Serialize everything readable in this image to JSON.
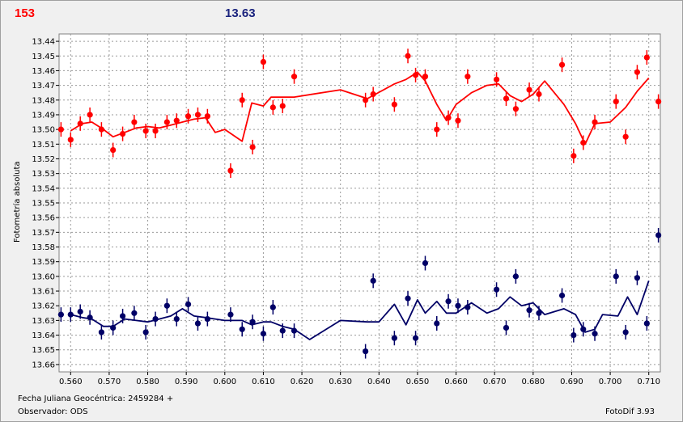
{
  "header": {
    "left_value": "153",
    "right_value": "13.63",
    "left_color": "#ff0000",
    "right_color": "#1a237e"
  },
  "footer": {
    "xlabel": "Fecha Juliana Geocéntrica: 2459284 +",
    "observer": "Observador: ODS",
    "version": "FotoDif 3.93"
  },
  "chart_data": {
    "type": "scatter",
    "ylabel": "Fotometría absoluta",
    "xlim": [
      0.557,
      0.713
    ],
    "ylim": [
      13.435,
      13.665
    ],
    "y_inverted": true,
    "grid": true,
    "x_ticks": [
      "0.560",
      "0.570",
      "0.580",
      "0.590",
      "0.600",
      "0.610",
      "0.620",
      "0.630",
      "0.640",
      "0.650",
      "0.660",
      "0.670",
      "0.680",
      "0.690",
      "0.700",
      "0.710"
    ],
    "y_ticks": [
      "13.44",
      "13.45",
      "13.46",
      "13.47",
      "13.48",
      "13.49",
      "13.50",
      "13.51",
      "13.52",
      "13.53",
      "13.54",
      "13.55",
      "13.56",
      "13.57",
      "13.58",
      "13.59",
      "13.60",
      "13.61",
      "13.62",
      "13.63",
      "13.64",
      "13.65",
      "13.66"
    ],
    "series": [
      {
        "color": "#ff0000",
        "points": [
          [
            0.5575,
            13.5
          ],
          [
            0.56,
            13.507
          ],
          [
            0.5625,
            13.496
          ],
          [
            0.565,
            13.49
          ],
          [
            0.568,
            13.5
          ],
          [
            0.571,
            13.514
          ],
          [
            0.5735,
            13.503
          ],
          [
            0.5765,
            13.495
          ],
          [
            0.5795,
            13.501
          ],
          [
            0.582,
            13.501
          ],
          [
            0.585,
            13.495
          ],
          [
            0.5875,
            13.494
          ],
          [
            0.5905,
            13.491
          ],
          [
            0.593,
            13.49
          ],
          [
            0.5955,
            13.491
          ],
          [
            0.6015,
            13.528
          ],
          [
            0.6045,
            13.48
          ],
          [
            0.6072,
            13.512
          ],
          [
            0.61,
            13.454
          ],
          [
            0.6125,
            13.485
          ],
          [
            0.615,
            13.484
          ],
          [
            0.618,
            13.464
          ],
          [
            0.6365,
            13.48
          ],
          [
            0.6385,
            13.476
          ],
          [
            0.644,
            13.483
          ],
          [
            0.6475,
            13.45
          ],
          [
            0.6495,
            13.463
          ],
          [
            0.652,
            13.464
          ],
          [
            0.655,
            13.5
          ],
          [
            0.658,
            13.492
          ],
          [
            0.6605,
            13.494
          ],
          [
            0.663,
            13.464
          ],
          [
            0.6705,
            13.466
          ],
          [
            0.673,
            13.479
          ],
          [
            0.6755,
            13.486
          ],
          [
            0.679,
            13.473
          ],
          [
            0.6815,
            13.476
          ],
          [
            0.6875,
            13.456
          ],
          [
            0.6905,
            13.518
          ],
          [
            0.693,
            13.509
          ],
          [
            0.696,
            13.495
          ],
          [
            0.7015,
            13.481
          ],
          [
            0.704,
            13.505
          ],
          [
            0.707,
            13.461
          ],
          [
            0.7095,
            13.451
          ],
          [
            0.7125,
            13.481
          ]
        ],
        "line": [
          [
            0.56,
            13.501
          ],
          [
            0.563,
            13.496
          ],
          [
            0.5655,
            13.495
          ],
          [
            0.5685,
            13.5
          ],
          [
            0.571,
            13.505
          ],
          [
            0.574,
            13.502
          ],
          [
            0.577,
            13.499
          ],
          [
            0.58,
            13.498
          ],
          [
            0.583,
            13.499
          ],
          [
            0.586,
            13.497
          ],
          [
            0.589,
            13.495
          ],
          [
            0.592,
            13.493
          ],
          [
            0.595,
            13.492
          ],
          [
            0.5975,
            13.502
          ],
          [
            0.6,
            13.5
          ],
          [
            0.6045,
            13.508
          ],
          [
            0.607,
            13.482
          ],
          [
            0.61,
            13.484
          ],
          [
            0.612,
            13.478
          ],
          [
            0.615,
            13.478
          ],
          [
            0.618,
            13.478
          ],
          [
            0.63,
            13.473
          ],
          [
            0.637,
            13.479
          ],
          [
            0.644,
            13.469
          ],
          [
            0.647,
            13.466
          ],
          [
            0.65,
            13.461
          ],
          [
            0.652,
            13.467
          ],
          [
            0.655,
            13.483
          ],
          [
            0.6575,
            13.494
          ],
          [
            0.66,
            13.483
          ],
          [
            0.664,
            13.475
          ],
          [
            0.668,
            13.47
          ],
          [
            0.671,
            13.469
          ],
          [
            0.674,
            13.477
          ],
          [
            0.677,
            13.481
          ],
          [
            0.68,
            13.476
          ],
          [
            0.683,
            13.467
          ],
          [
            0.688,
            13.483
          ],
          [
            0.691,
            13.496
          ],
          [
            0.6935,
            13.51
          ],
          [
            0.696,
            13.496
          ],
          [
            0.7,
            13.495
          ],
          [
            0.704,
            13.485
          ],
          [
            0.707,
            13.474
          ],
          [
            0.71,
            13.465
          ]
        ]
      },
      {
        "color": "#000066",
        "points": [
          [
            0.5575,
            13.626
          ],
          [
            0.56,
            13.626
          ],
          [
            0.5625,
            13.624
          ],
          [
            0.565,
            13.628
          ],
          [
            0.568,
            13.638
          ],
          [
            0.571,
            13.635
          ],
          [
            0.5735,
            13.627
          ],
          [
            0.5765,
            13.625
          ],
          [
            0.5795,
            13.638
          ],
          [
            0.582,
            13.629
          ],
          [
            0.585,
            13.62
          ],
          [
            0.5875,
            13.629
          ],
          [
            0.5905,
            13.619
          ],
          [
            0.593,
            13.632
          ],
          [
            0.5955,
            13.629
          ],
          [
            0.6015,
            13.626
          ],
          [
            0.6045,
            13.636
          ],
          [
            0.6072,
            13.631
          ],
          [
            0.61,
            13.639
          ],
          [
            0.6125,
            13.621
          ],
          [
            0.615,
            13.637
          ],
          [
            0.618,
            13.637
          ],
          [
            0.6365,
            13.651
          ],
          [
            0.6385,
            13.603
          ],
          [
            0.644,
            13.642
          ],
          [
            0.6475,
            13.615
          ],
          [
            0.6495,
            13.642
          ],
          [
            0.652,
            13.591
          ],
          [
            0.655,
            13.632
          ],
          [
            0.658,
            13.617
          ],
          [
            0.6605,
            13.62
          ],
          [
            0.663,
            13.621
          ],
          [
            0.6705,
            13.609
          ],
          [
            0.673,
            13.635
          ],
          [
            0.6755,
            13.6
          ],
          [
            0.679,
            13.623
          ],
          [
            0.6815,
            13.625
          ],
          [
            0.6875,
            13.613
          ],
          [
            0.6905,
            13.64
          ],
          [
            0.693,
            13.636
          ],
          [
            0.696,
            13.639
          ],
          [
            0.7015,
            13.6
          ],
          [
            0.704,
            13.638
          ],
          [
            0.707,
            13.601
          ],
          [
            0.7095,
            13.632
          ],
          [
            0.7125,
            13.572
          ]
        ],
        "line": [
          [
            0.56,
            13.626
          ],
          [
            0.563,
            13.628
          ],
          [
            0.5655,
            13.629
          ],
          [
            0.5685,
            13.634
          ],
          [
            0.571,
            13.634
          ],
          [
            0.574,
            13.629
          ],
          [
            0.577,
            13.63
          ],
          [
            0.58,
            13.631
          ],
          [
            0.583,
            13.629
          ],
          [
            0.586,
            13.627
          ],
          [
            0.589,
            13.622
          ],
          [
            0.592,
            13.627
          ],
          [
            0.595,
            13.628
          ],
          [
            0.5975,
            13.629
          ],
          [
            0.6,
            13.63
          ],
          [
            0.6045,
            13.63
          ],
          [
            0.607,
            13.633
          ],
          [
            0.61,
            13.631
          ],
          [
            0.612,
            13.631
          ],
          [
            0.615,
            13.634
          ],
          [
            0.618,
            13.636
          ],
          [
            0.622,
            13.643
          ],
          [
            0.63,
            13.63
          ],
          [
            0.637,
            13.631
          ],
          [
            0.64,
            13.631
          ],
          [
            0.644,
            13.619
          ],
          [
            0.647,
            13.633
          ],
          [
            0.65,
            13.616
          ],
          [
            0.652,
            13.625
          ],
          [
            0.655,
            13.617
          ],
          [
            0.6575,
            13.625
          ],
          [
            0.66,
            13.625
          ],
          [
            0.664,
            13.618
          ],
          [
            0.668,
            13.625
          ],
          [
            0.671,
            13.622
          ],
          [
            0.674,
            13.614
          ],
          [
            0.677,
            13.62
          ],
          [
            0.68,
            13.618
          ],
          [
            0.683,
            13.626
          ],
          [
            0.688,
            13.622
          ],
          [
            0.691,
            13.626
          ],
          [
            0.6935,
            13.638
          ],
          [
            0.696,
            13.636
          ],
          [
            0.698,
            13.626
          ],
          [
            0.702,
            13.627
          ],
          [
            0.7045,
            13.614
          ],
          [
            0.707,
            13.626
          ],
          [
            0.71,
            13.603
          ]
        ]
      }
    ]
  }
}
